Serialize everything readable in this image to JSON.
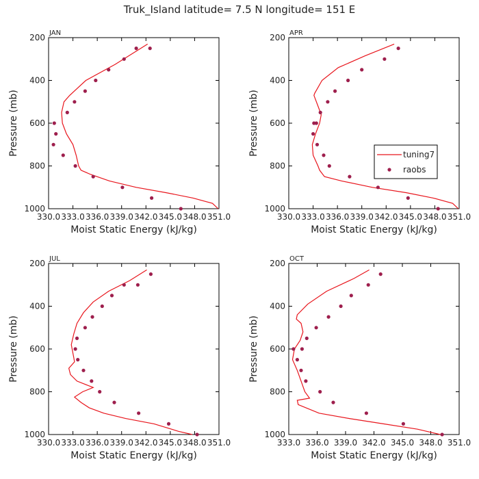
{
  "title": "Truk_Island  latitude= 7.5 N longitude= 151 E",
  "colors": {
    "model": "#e8141b",
    "obs": "#9e1f4d",
    "axis": "#000000"
  },
  "legend": {
    "model_label": "tuning7",
    "obs_label": "raobs"
  },
  "chart_data": [
    {
      "type": "line",
      "month": "JAN",
      "xlabel": "Moist Static Energy (kJ/kg)",
      "ylabel": "Pressure (mb)",
      "xlim": [
        330.0,
        351.0
      ],
      "ylim": [
        1000,
        200
      ],
      "xticks": [
        330.0,
        333.0,
        336.0,
        339.0,
        342.0,
        345.0,
        348.0,
        351.0
      ],
      "xtick_labels": [
        "330.0",
        "333.0",
        "336.0",
        "339.0",
        "342.0",
        "345.0",
        "348.0",
        "351.0"
      ],
      "yticks": [
        200,
        400,
        600,
        800,
        1000
      ],
      "tuning7": {
        "x": [
          350.9,
          350.2,
          347.8,
          344.5,
          340.8,
          337.5,
          335.2,
          334.0,
          333.7,
          333.4,
          333.0,
          332.2,
          331.7,
          331.6,
          331.9,
          332.6,
          334.6,
          338.2,
          342.2
        ],
        "y": [
          1000,
          975,
          950,
          925,
          900,
          870,
          840,
          820,
          800,
          750,
          700,
          650,
          600,
          550,
          500,
          470,
          400,
          325,
          230
        ]
      },
      "raobs": {
        "x": [
          346.3,
          342.7,
          339.1,
          335.5,
          333.3,
          331.8,
          330.6,
          330.9,
          330.7,
          332.3,
          333.2,
          334.5,
          335.8,
          337.4,
          339.3,
          340.8,
          342.5
        ],
        "y": [
          1000,
          950,
          900,
          850,
          800,
          750,
          700,
          650,
          600,
          550,
          500,
          450,
          400,
          350,
          300,
          250,
          250
        ]
      }
    },
    {
      "type": "line",
      "month": "APR",
      "xlabel": "Moist Static Energy (kJ/kg)",
      "ylabel": "Pressure (mb)",
      "xlim": [
        330.0,
        351.0
      ],
      "ylim": [
        1000,
        200
      ],
      "xticks": [
        330.0,
        333.0,
        336.0,
        339.0,
        342.0,
        345.0,
        348.0,
        351.0
      ],
      "xtick_labels": [
        "330.0",
        "333.0",
        "336.0",
        "339.0",
        "342.0",
        "345.0",
        "348.0",
        "351.0"
      ],
      "yticks": [
        200,
        400,
        600,
        800,
        1000
      ],
      "legend_position": "center-right",
      "tuning7": {
        "x": [
          350.9,
          350.2,
          347.8,
          344.5,
          340.3,
          336.5,
          334.4,
          333.8,
          333.6,
          333.0,
          332.9,
          333.3,
          333.8,
          334.0,
          333.6,
          333.1,
          333.2,
          334.1,
          336.1,
          339.4,
          343.0
        ],
        "y": [
          1000,
          975,
          950,
          925,
          900,
          870,
          850,
          820,
          800,
          750,
          700,
          650,
          600,
          560,
          520,
          470,
          460,
          400,
          340,
          285,
          230
        ]
      },
      "raobs": {
        "x": [
          348.4,
          344.7,
          341.0,
          337.5,
          335.0,
          334.3,
          333.5,
          333.0,
          333.1,
          333.4,
          333.9,
          334.8,
          335.7,
          337.3,
          339.0,
          341.8,
          343.5
        ],
        "y": [
          1000,
          950,
          900,
          850,
          800,
          750,
          700,
          650,
          600,
          600,
          550,
          500,
          450,
          400,
          350,
          300,
          250
        ]
      }
    },
    {
      "type": "line",
      "month": "JUL",
      "xlabel": "Moist Static Energy (kJ/kg)",
      "ylabel": "Pressure (mb)",
      "xlim": [
        330.0,
        351.0
      ],
      "ylim": [
        1000,
        200
      ],
      "xticks": [
        330.0,
        333.0,
        336.0,
        339.0,
        342.0,
        345.0,
        348.0,
        351.0
      ],
      "xtick_labels": [
        "330.0",
        "333.0",
        "336.0",
        "339.0",
        "342.0",
        "345.0",
        "348.0",
        "351.0"
      ],
      "yticks": [
        200,
        400,
        600,
        800,
        1000
      ],
      "tuning7": {
        "x": [
          347.7,
          346.0,
          343.0,
          339.5,
          336.8,
          335.0,
          334.0,
          333.2,
          334.2,
          335.5,
          333.5,
          332.7,
          332.5,
          333.2,
          333.1,
          332.9,
          332.8,
          333.1,
          333.5,
          334.3,
          335.5,
          337.4,
          340.0,
          342.1
        ],
        "y": [
          1000,
          985,
          950,
          925,
          900,
          875,
          850,
          825,
          800,
          780,
          750,
          720,
          690,
          660,
          640,
          600,
          580,
          530,
          480,
          430,
          380,
          330,
          280,
          230
        ]
      },
      "raobs": {
        "x": [
          348.3,
          344.8,
          341.1,
          338.1,
          336.3,
          335.3,
          334.3,
          333.6,
          333.3,
          333.5,
          334.5,
          335.4,
          336.6,
          337.8,
          339.3,
          341.0,
          342.6
        ],
        "y": [
          1000,
          950,
          900,
          850,
          800,
          750,
          700,
          650,
          600,
          550,
          500,
          450,
          400,
          350,
          300,
          300,
          250
        ]
      }
    },
    {
      "type": "line",
      "month": "OCT",
      "xlabel": "Moist Static Energy (kJ/kg)",
      "ylabel": "Pressure (mb)",
      "xlim": [
        333.0,
        351.0
      ],
      "ylim": [
        1000,
        200
      ],
      "xticks": [
        333.0,
        336.0,
        339.0,
        342.0,
        345.0,
        348.0,
        351.0
      ],
      "xtick_labels": [
        "333.0",
        "336.0",
        "339.0",
        "342.0",
        "345.0",
        "348.0",
        "351.0"
      ],
      "yticks": [
        200,
        400,
        600,
        800,
        1000
      ],
      "tuning7": {
        "x": [
          349.0,
          346.6,
          343.0,
          339.4,
          336.2,
          334.0,
          333.9,
          335.2,
          334.7,
          334.3,
          333.9,
          333.4,
          333.6,
          334.2,
          334.5,
          334.3,
          333.8,
          333.9,
          335.0,
          337.0,
          339.9,
          341.5
        ],
        "y": [
          1000,
          975,
          950,
          925,
          900,
          860,
          840,
          830,
          800,
          750,
          700,
          650,
          600,
          560,
          520,
          480,
          460,
          440,
          390,
          330,
          270,
          230
        ]
      },
      "raobs": {
        "x": [
          349.2,
          345.1,
          341.2,
          337.7,
          336.3,
          334.8,
          334.3,
          333.9,
          334.4,
          333.5,
          334.9,
          335.9,
          337.2,
          338.5,
          339.6,
          341.4,
          342.7
        ],
        "y": [
          1000,
          950,
          900,
          850,
          800,
          750,
          700,
          650,
          600,
          600,
          550,
          500,
          450,
          400,
          350,
          300,
          250
        ]
      }
    }
  ]
}
